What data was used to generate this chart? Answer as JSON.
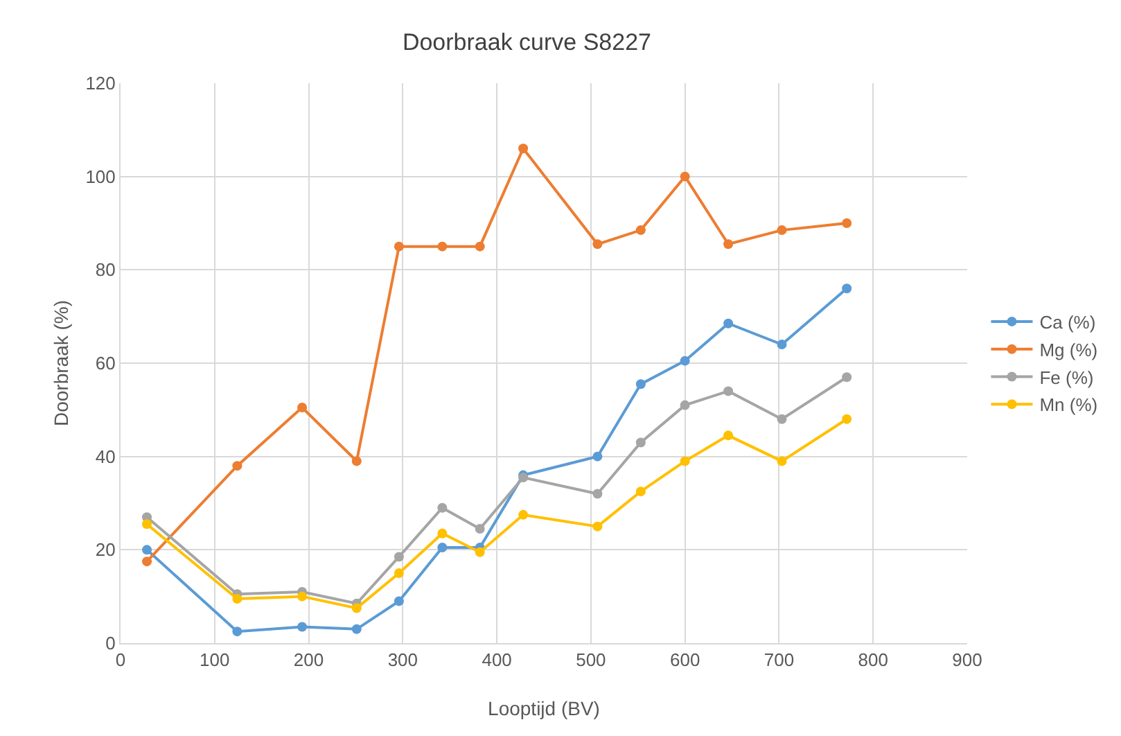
{
  "chart_data": {
    "type": "line",
    "title": "Doorbraak curve S8227",
    "xlabel": "Looptijd (BV)",
    "ylabel": "Doorbraak (%)",
    "x": [
      28,
      124,
      193,
      251,
      296,
      342,
      382,
      428,
      507,
      553,
      600,
      646,
      703,
      772
    ],
    "series": [
      {
        "name": "Ca (%)",
        "color": "#5b9bd5",
        "values": [
          20,
          2.5,
          3.5,
          3,
          9,
          20.5,
          20.5,
          36,
          40,
          55.5,
          60.5,
          68.5,
          64,
          76
        ]
      },
      {
        "name": "Mg (%)",
        "color": "#ed7d31",
        "values": [
          17.5,
          38,
          50.5,
          39,
          85,
          85,
          85,
          106,
          85.5,
          88.5,
          100,
          85.5,
          88.5,
          90
        ]
      },
      {
        "name": "Fe (%)",
        "color": "#a5a5a5",
        "values": [
          27,
          10.5,
          11,
          8.5,
          18.5,
          29,
          24.5,
          35.5,
          32,
          43,
          51,
          54,
          48,
          57
        ]
      },
      {
        "name": "Mn (%)",
        "color": "#ffc000",
        "values": [
          25.5,
          9.5,
          10,
          7.5,
          15,
          23.5,
          19.5,
          27.5,
          25,
          32.5,
          39,
          44.5,
          39,
          48
        ]
      }
    ],
    "xlim": [
      0,
      900
    ],
    "xticks": [
      0,
      100,
      200,
      300,
      400,
      500,
      600,
      700,
      800,
      900
    ],
    "ylim": [
      0,
      120
    ],
    "yticks": [
      0,
      20,
      40,
      60,
      80,
      100,
      120
    ],
    "grid": true,
    "legend": "right",
    "marker": "circle",
    "line_style": "solid"
  }
}
